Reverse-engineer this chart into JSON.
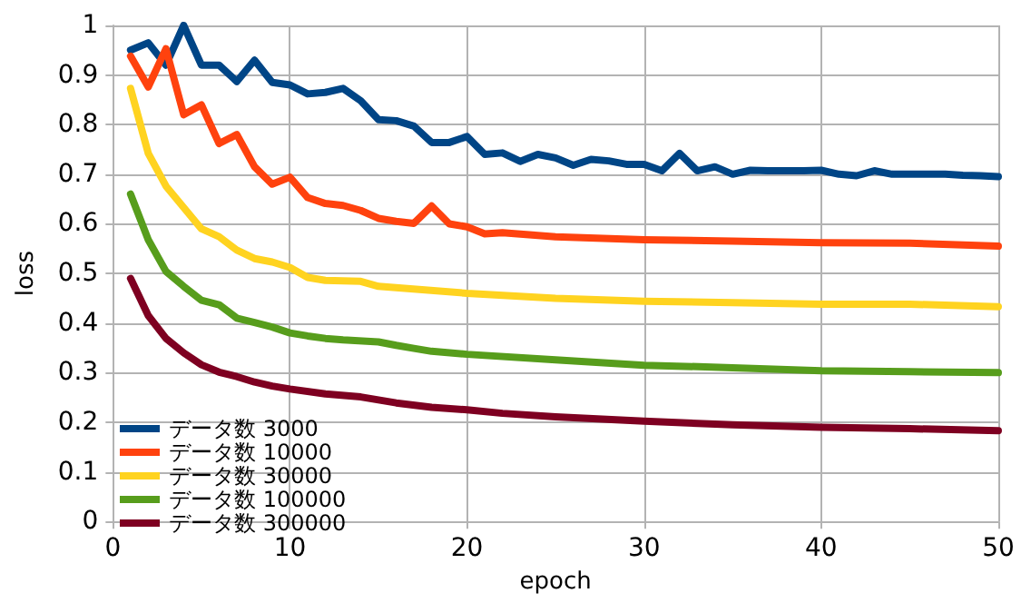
{
  "chart_data": {
    "type": "line",
    "xlabel": "epoch",
    "ylabel": "loss",
    "xlim": [
      0,
      50
    ],
    "xticks": [
      0,
      10,
      20,
      30,
      40,
      50
    ],
    "ylim": [
      0,
      1
    ],
    "yticks": [
      0,
      0.1,
      0.2,
      0.3,
      0.4,
      0.5,
      0.6,
      0.7,
      0.8,
      0.9,
      1
    ],
    "grid": true,
    "legend": "bottom left",
    "marker": "none",
    "line_style": "solid",
    "series": [
      {
        "name": "データ数 3000",
        "color": "#004586",
        "x": [
          1,
          2,
          3,
          4,
          5,
          6,
          7,
          8,
          9,
          10,
          11,
          12,
          13,
          14,
          15,
          16,
          17,
          18,
          19,
          20,
          21,
          22,
          23,
          24,
          25,
          26,
          27,
          28,
          29,
          30,
          31,
          32,
          33,
          34,
          35,
          36,
          37,
          38,
          39,
          40,
          41,
          42,
          43,
          44,
          45,
          46,
          47,
          48,
          49,
          50
        ],
        "values": [
          0.95,
          0.965,
          0.92,
          1.0,
          0.92,
          0.92,
          0.887,
          0.93,
          0.885,
          0.88,
          0.862,
          0.865,
          0.873,
          0.848,
          0.81,
          0.808,
          0.797,
          0.764,
          0.764,
          0.776,
          0.74,
          0.743,
          0.726,
          0.74,
          0.733,
          0.718,
          0.73,
          0.727,
          0.72,
          0.72,
          0.707,
          0.742,
          0.707,
          0.715,
          0.7,
          0.708,
          0.707,
          0.707,
          0.707,
          0.708,
          0.7,
          0.697,
          0.707,
          0.7,
          0.7,
          0.7,
          0.7,
          0.698,
          0.697,
          0.695
        ]
      },
      {
        "name": "データ数 10000",
        "color": "#ff420e",
        "x": [
          1,
          2,
          3,
          4,
          5,
          6,
          7,
          8,
          9,
          10,
          11,
          12,
          13,
          14,
          15,
          16,
          17,
          18,
          19,
          20,
          21,
          22,
          25,
          30,
          35,
          40,
          45,
          50
        ],
        "values": [
          0.938,
          0.876,
          0.953,
          0.82,
          0.84,
          0.762,
          0.78,
          0.715,
          0.68,
          0.694,
          0.653,
          0.641,
          0.637,
          0.627,
          0.611,
          0.605,
          0.601,
          0.636,
          0.6,
          0.594,
          0.58,
          0.582,
          0.574,
          0.568,
          0.565,
          0.562,
          0.561,
          0.555
        ]
      },
      {
        "name": "データ数 30000",
        "color": "#ffd320",
        "x": [
          1,
          2,
          3,
          4,
          5,
          6,
          7,
          8,
          9,
          10,
          11,
          12,
          13,
          14,
          15,
          20,
          25,
          30,
          35,
          40,
          45,
          50
        ],
        "values": [
          0.873,
          0.742,
          0.676,
          0.633,
          0.59,
          0.574,
          0.547,
          0.53,
          0.523,
          0.512,
          0.492,
          0.486,
          0.485,
          0.484,
          0.474,
          0.46,
          0.45,
          0.444,
          0.441,
          0.438,
          0.438,
          0.433
        ]
      },
      {
        "name": "データ数 100000",
        "color": "#579d1c",
        "x": [
          1,
          2,
          3,
          4,
          5,
          6,
          7,
          8,
          9,
          10,
          11,
          12,
          13,
          15,
          16,
          17,
          18,
          20,
          25,
          30,
          35,
          40,
          45,
          50
        ],
        "values": [
          0.66,
          0.568,
          0.504,
          0.474,
          0.446,
          0.437,
          0.41,
          0.401,
          0.392,
          0.38,
          0.374,
          0.369,
          0.366,
          0.362,
          0.355,
          0.349,
          0.343,
          0.337,
          0.326,
          0.315,
          0.31,
          0.304,
          0.302,
          0.3
        ]
      },
      {
        "name": "データ数 300000",
        "color": "#7e0021",
        "x": [
          1,
          2,
          3,
          4,
          5,
          6,
          7,
          8,
          9,
          10,
          12,
          14,
          16,
          18,
          20,
          22,
          25,
          30,
          35,
          40,
          45,
          50
        ],
        "values": [
          0.49,
          0.415,
          0.369,
          0.34,
          0.316,
          0.301,
          0.292,
          0.281,
          0.273,
          0.267,
          0.257,
          0.251,
          0.239,
          0.23,
          0.225,
          0.218,
          0.211,
          0.202,
          0.195,
          0.19,
          0.187,
          0.183
        ]
      }
    ]
  }
}
